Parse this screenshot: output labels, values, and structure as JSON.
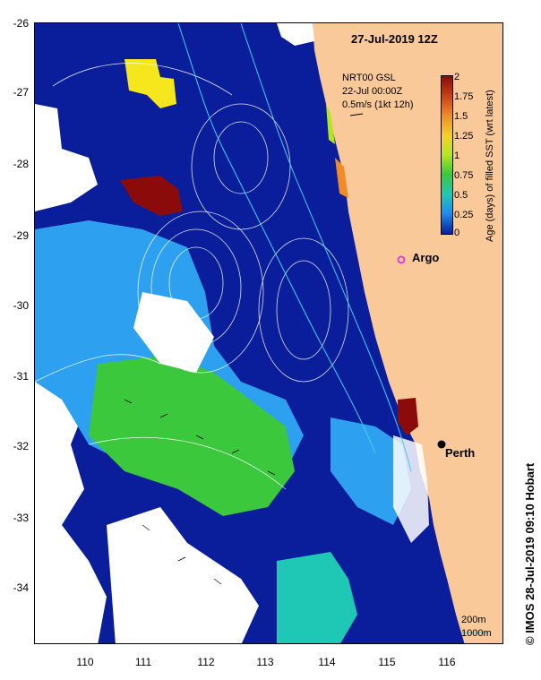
{
  "title": "27-Jul-2019 12Z",
  "product": {
    "line1": "NRT00 GSL",
    "line2": "22-Jul 00:00Z",
    "scale_vector": "0.5m/s (1kt 12h)"
  },
  "colorbar": {
    "title": "Age (days) of filled SST (wrt latest)",
    "ticks": [
      "2",
      "1.75",
      "1.5",
      "1.25",
      "1",
      "0.75",
      "0.5",
      "0.25",
      "0"
    ],
    "colors": [
      "#8b0a0a",
      "#c83c14",
      "#f08c28",
      "#f5d228",
      "#b4e61e",
      "#3cc83c",
      "#1ec8b4",
      "#1e8cf0",
      "#0a1e9b"
    ]
  },
  "axes": {
    "y_ticks": [
      "-26",
      "-27",
      "-28",
      "-29",
      "-30",
      "-31",
      "-32",
      "-33",
      "-34"
    ],
    "x_ticks": [
      "110",
      "111",
      "112",
      "113",
      "114",
      "115",
      "116"
    ]
  },
  "places": {
    "argo": "Argo",
    "perth": "Perth"
  },
  "bathymetry_legend": {
    "contour_200": "200m",
    "contour_1000": "1000m"
  },
  "credit": "© IMOS 28-Jul-2019 09:10 Hobart",
  "colors": {
    "land": "#fac99a",
    "deep_ocean": "#0a1e9b",
    "argo_marker": "#e040e0",
    "perth_marker": "#000000"
  }
}
